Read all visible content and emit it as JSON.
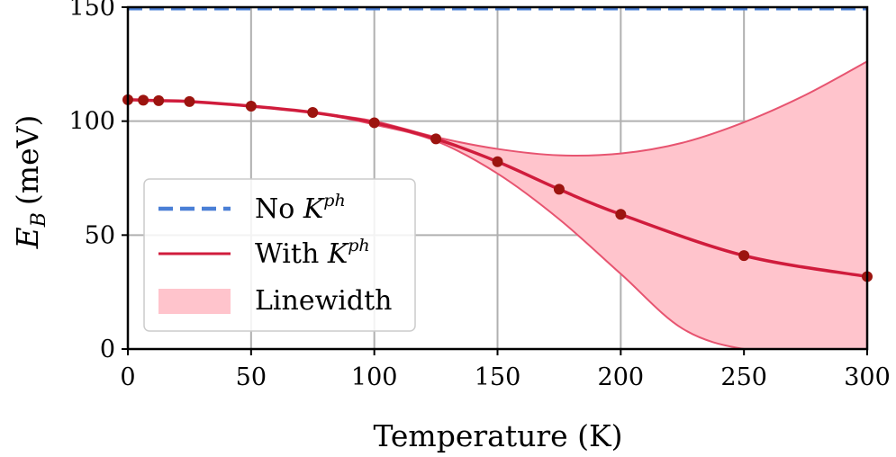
{
  "chart_data": {
    "type": "line",
    "title": "",
    "xlabel": "Temperature (K)",
    "ylabel": {
      "symbol": "E",
      "subscript": "B",
      "unit": "(meV)"
    },
    "xlim": [
      0,
      300
    ],
    "ylim": [
      0,
      150
    ],
    "xticks": [
      0,
      50,
      100,
      150,
      200,
      250,
      300
    ],
    "yticks": [
      0,
      50,
      100,
      150
    ],
    "grid": true,
    "legend_position": "lower-left",
    "series": [
      {
        "name": "No K^ph",
        "legend": {
          "prefix": "No ",
          "symbol": "K",
          "superscript": "ph"
        },
        "style": "dashed",
        "color": "#4a7fd6",
        "x": [
          0,
          300
        ],
        "y": [
          149.5,
          149.5
        ]
      },
      {
        "name": "With K^ph",
        "legend": {
          "prefix": "With ",
          "symbol": "K",
          "superscript": "ph"
        },
        "style": "solid-with-markers",
        "color": "#d01c3c",
        "marker_color": "#9c140f",
        "x": [
          0,
          6.25,
          12.5,
          25,
          50,
          75,
          100,
          125,
          150,
          175,
          200,
          250,
          300
        ],
        "y": [
          109.4,
          109.2,
          109.0,
          108.6,
          106.6,
          103.8,
          99.3,
          92.2,
          82.2,
          70.1,
          59.1,
          41.0,
          31.8
        ]
      },
      {
        "name": "Linewidth",
        "legend": {
          "prefix": "Linewidth",
          "symbol": "",
          "superscript": ""
        },
        "style": "band",
        "color": "#ffc4cc",
        "edge_color": "#e75470",
        "x": [
          0,
          25,
          50,
          75,
          100,
          125,
          150,
          175,
          200,
          225,
          250,
          275,
          300
        ],
        "upper": [
          109.4,
          108.6,
          106.6,
          103.8,
          100.0,
          93.0,
          87.8,
          85.0,
          85.8,
          90.5,
          99.5,
          111.5,
          126.2
        ],
        "lower": [
          109.4,
          108.6,
          106.6,
          103.8,
          98.5,
          91.3,
          77.0,
          57.0,
          33.0,
          9.0,
          0,
          0,
          0
        ]
      }
    ]
  }
}
